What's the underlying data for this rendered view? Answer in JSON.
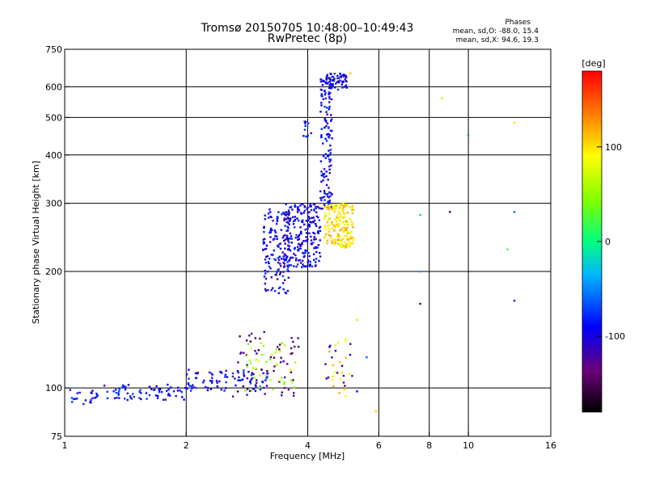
{
  "chart_data": {
    "type": "scatter",
    "title": "Tromsø 20150705 10:48:00–10:49:43",
    "subtitle": "RwPretec (8p)",
    "xlabel": "Frequency [MHz]",
    "ylabel": "Stationary phase Virtual Height [km]",
    "x_scale": "log2",
    "y_scale": "log",
    "xlim": [
      1,
      16
    ],
    "ylim": [
      75,
      750
    ],
    "grid": true,
    "x_ticks": [
      1,
      2,
      4,
      6,
      8,
      10,
      16
    ],
    "x_tick_labels": [
      "1",
      "2",
      "4",
      "6",
      "8",
      "10",
      "16"
    ],
    "y_ticks": [
      75,
      100,
      200,
      300,
      400,
      500,
      600,
      750
    ],
    "y_tick_labels": [
      "75",
      "100",
      "200",
      "300",
      "400",
      "500",
      "600",
      "750"
    ],
    "stats": {
      "heading": "Phases",
      "line_o": "mean, sd,O: -88.0, 15.4",
      "line_x": "mean, sd,X:  94.6, 19.3"
    },
    "colorbar": {
      "title": "[deg]",
      "range": [
        -180,
        180
      ],
      "ticks": [
        100,
        0,
        -100
      ],
      "tick_labels": [
        "100",
        "0",
        "-100"
      ]
    },
    "clusters": [
      {
        "freq": [
          1.0,
          1.2
        ],
        "height": [
          90,
          100
        ],
        "phase": -90,
        "count": 20
      },
      {
        "freq": [
          1.2,
          2.0
        ],
        "height": [
          93,
          102
        ],
        "phase": -90,
        "count": 70
      },
      {
        "freq": [
          2.0,
          3.2
        ],
        "height": [
          98,
          112
        ],
        "phase": -90,
        "count": 90
      },
      {
        "freq": [
          2.6,
          3.8
        ],
        "height": [
          95,
          140
        ],
        "phase": -140,
        "count": 60
      },
      {
        "freq": [
          2.8,
          3.8
        ],
        "height": [
          98,
          135
        ],
        "phase": 60,
        "count": 40
      },
      {
        "freq": [
          3.1,
          3.6
        ],
        "height": [
          175,
          290
        ],
        "phase": -95,
        "count": 140
      },
      {
        "freq": [
          3.5,
          4.3
        ],
        "height": [
          205,
          300
        ],
        "phase": -95,
        "count": 230
      },
      {
        "freq": [
          4.3,
          4.6
        ],
        "height": [
          290,
          640
        ],
        "phase": -95,
        "count": 140
      },
      {
        "freq": [
          4.4,
          5.0
        ],
        "height": [
          590,
          650
        ],
        "phase": -95,
        "count": 70
      },
      {
        "freq": [
          4.4,
          5.2
        ],
        "height": [
          230,
          300
        ],
        "phase": 100,
        "count": 180
      },
      {
        "freq": [
          3.9,
          4.1
        ],
        "height": [
          440,
          490
        ],
        "phase": -95,
        "count": 10
      },
      {
        "freq": [
          4.5,
          5.3
        ],
        "height": [
          95,
          140
        ],
        "phase": 100,
        "count": 20
      },
      {
        "freq": [
          4.4,
          5.2
        ],
        "height": [
          95,
          130
        ],
        "phase": -120,
        "count": 15
      }
    ],
    "points": [
      {
        "x": 5.1,
        "y": 650,
        "phase": 110
      },
      {
        "x": 8.6,
        "y": 560,
        "phase": 100
      },
      {
        "x": 10.0,
        "y": 450,
        "phase": -50
      },
      {
        "x": 13.0,
        "y": 485,
        "phase": 100
      },
      {
        "x": 7.6,
        "y": 280,
        "phase": -20
      },
      {
        "x": 9.0,
        "y": 285,
        "phase": -150
      },
      {
        "x": 13.0,
        "y": 285,
        "phase": -60
      },
      {
        "x": 12.5,
        "y": 228,
        "phase": 20
      },
      {
        "x": 7.6,
        "y": 200,
        "phase": -40
      },
      {
        "x": 7.6,
        "y": 165,
        "phase": -150
      },
      {
        "x": 13.0,
        "y": 168,
        "phase": -80
      },
      {
        "x": 5.9,
        "y": 87,
        "phase": 110
      },
      {
        "x": 5.3,
        "y": 98,
        "phase": -90
      },
      {
        "x": 5.3,
        "y": 150,
        "phase": 100
      },
      {
        "x": 5.6,
        "y": 120,
        "phase": -60
      }
    ]
  }
}
